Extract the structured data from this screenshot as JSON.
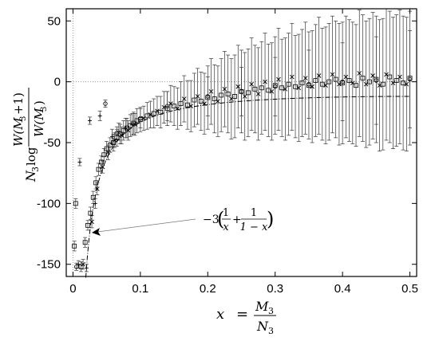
{
  "chart_data": {
    "type": "scatter",
    "xlim": [
      -0.01,
      0.51
    ],
    "ylim": [
      -160,
      60
    ],
    "xticks": [
      "0",
      "0.1",
      "0.2",
      "0.3",
      "0.4",
      "0.5"
    ],
    "yticks": [
      "50",
      "0",
      "-50",
      "-100",
      "-150"
    ],
    "xtick_values": [
      0,
      0.1,
      0.2,
      0.3,
      0.4,
      0.5
    ],
    "ytick_values": [
      50,
      0,
      -50,
      -100,
      -150
    ],
    "xlabel": {
      "var": "x",
      "eq": "=",
      "num": "M",
      "num_sub": "3",
      "den": "N",
      "den_sub": "3"
    },
    "ylabel": {
      "pre": "N",
      "pre_sub": "3",
      "log": "log",
      "num": "W(M",
      "num_sub": "3",
      "num_tail": "+1)",
      "den": "W(M",
      "den_sub": "3",
      "den_tail": ")"
    },
    "curve_label": {
      "prefix": "−3",
      "a_num": "1",
      "a_den": "x",
      "plus": "+",
      "b_num": "1",
      "b_den": "1 − x"
    },
    "curve_formula": "-3*(1/x + 1/(1-x))",
    "grid": false,
    "reference_lines": {
      "y": 0,
      "x": 0,
      "style": "dotted"
    },
    "series": [
      {
        "marker": "square",
        "points": [
          [
            0.002,
            -135
          ],
          [
            0.004,
            -100
          ],
          [
            0.012,
            -152
          ],
          [
            0.018,
            -132
          ],
          [
            0.022,
            -118
          ],
          [
            0.026,
            -108
          ],
          [
            0.03,
            -95
          ],
          [
            0.034,
            -83
          ],
          [
            0.038,
            -72
          ],
          [
            0.042,
            -66
          ],
          [
            0.046,
            -60
          ],
          [
            0.05,
            -55
          ],
          [
            0.055,
            -52
          ],
          [
            0.06,
            -50
          ],
          [
            0.065,
            -46
          ],
          [
            0.07,
            -43
          ],
          [
            0.075,
            -40
          ],
          [
            0.08,
            -38
          ],
          [
            0.085,
            -36
          ],
          [
            0.09,
            -34
          ],
          [
            0.095,
            -32
          ],
          [
            0.1,
            -31
          ],
          [
            0.11,
            -28
          ],
          [
            0.12,
            -26
          ],
          [
            0.13,
            -25
          ],
          [
            0.14,
            -22
          ],
          [
            0.15,
            -20
          ],
          [
            0.16,
            -18
          ],
          [
            0.17,
            -19
          ],
          [
            0.18,
            -15
          ],
          [
            0.19,
            -16
          ],
          [
            0.2,
            -13
          ],
          [
            0.21,
            -14
          ],
          [
            0.22,
            -11
          ],
          [
            0.23,
            -10
          ],
          [
            0.24,
            -12
          ],
          [
            0.25,
            -8
          ],
          [
            0.26,
            -9
          ],
          [
            0.27,
            -6
          ],
          [
            0.28,
            -5
          ],
          [
            0.29,
            -7
          ],
          [
            0.3,
            -3
          ],
          [
            0.31,
            -5
          ],
          [
            0.32,
            -2
          ],
          [
            0.33,
            -4
          ],
          [
            0.34,
            -1
          ],
          [
            0.35,
            -3
          ],
          [
            0.36,
            1
          ],
          [
            0.37,
            -2
          ],
          [
            0.38,
            0
          ],
          [
            0.39,
            2
          ],
          [
            0.4,
            -1
          ],
          [
            0.41,
            1
          ],
          [
            0.42,
            -3
          ],
          [
            0.43,
            3
          ],
          [
            0.44,
            0
          ],
          [
            0.45,
            2
          ],
          [
            0.46,
            -2
          ],
          [
            0.47,
            4
          ],
          [
            0.48,
            1
          ],
          [
            0.49,
            -1
          ],
          [
            0.5,
            3
          ]
        ],
        "errors": [
          4,
          4,
          4,
          4,
          4,
          5,
          5,
          5,
          5,
          5,
          5,
          6,
          6,
          7,
          7,
          8,
          8,
          8,
          9,
          9,
          10,
          10,
          11,
          12,
          13,
          14,
          16,
          18,
          20,
          22,
          24,
          26,
          28,
          30,
          32,
          34,
          34,
          36,
          36,
          38,
          38,
          40,
          40,
          42,
          42,
          44,
          44,
          46,
          46,
          48,
          48,
          50,
          50,
          50,
          52,
          52,
          52,
          54,
          54,
          54,
          55,
          55
        ]
      },
      {
        "marker": "cross",
        "points": [
          [
            0.015,
            -150
          ],
          [
            0.028,
            -115
          ],
          [
            0.036,
            -88
          ],
          [
            0.044,
            -70
          ],
          [
            0.052,
            -58
          ],
          [
            0.062,
            -48
          ],
          [
            0.072,
            -44
          ],
          [
            0.082,
            -40
          ],
          [
            0.092,
            -35
          ],
          [
            0.105,
            -30
          ],
          [
            0.115,
            -27
          ],
          [
            0.125,
            -24
          ],
          [
            0.135,
            -21
          ],
          [
            0.145,
            -18
          ],
          [
            0.155,
            -22
          ],
          [
            0.165,
            -14
          ],
          [
            0.175,
            -20
          ],
          [
            0.185,
            -12
          ],
          [
            0.195,
            -18
          ],
          [
            0.205,
            -8
          ],
          [
            0.215,
            -16
          ],
          [
            0.225,
            -6
          ],
          [
            0.235,
            -14
          ],
          [
            0.245,
            -4
          ],
          [
            0.255,
            -12
          ],
          [
            0.265,
            -2
          ],
          [
            0.275,
            -10
          ],
          [
            0.285,
            0
          ],
          [
            0.295,
            -8
          ],
          [
            0.305,
            2
          ],
          [
            0.315,
            -6
          ],
          [
            0.325,
            4
          ],
          [
            0.335,
            -5
          ],
          [
            0.345,
            3
          ],
          [
            0.355,
            -4
          ],
          [
            0.365,
            5
          ],
          [
            0.375,
            -3
          ],
          [
            0.385,
            6
          ],
          [
            0.395,
            -2
          ],
          [
            0.405,
            4
          ],
          [
            0.415,
            -1
          ],
          [
            0.425,
            7
          ],
          [
            0.435,
            -2
          ],
          [
            0.445,
            5
          ],
          [
            0.455,
            -3
          ],
          [
            0.465,
            6
          ],
          [
            0.475,
            -1
          ],
          [
            0.485,
            4
          ],
          [
            0.495,
            -2
          ]
        ],
        "errors": [
          4,
          5,
          5,
          5,
          6,
          6,
          7,
          8,
          9,
          10,
          11,
          12,
          13,
          15,
          17,
          19,
          21,
          23,
          25,
          27,
          29,
          31,
          33,
          34,
          36,
          38,
          38,
          40,
          40,
          42,
          42,
          44,
          44,
          46,
          46,
          48,
          48,
          48,
          50,
          50,
          50,
          52,
          52,
          52,
          54,
          54,
          54,
          55,
          55
        ]
      },
      {
        "marker": "circle",
        "points": [
          [
            0.005,
            -152
          ],
          [
            0.048,
            -18
          ],
          [
            0.065,
            -42
          ],
          [
            0.1,
            -30
          ],
          [
            0.14,
            -20
          ],
          [
            0.2,
            -12
          ],
          [
            0.25,
            -8
          ],
          [
            0.3,
            -4
          ],
          [
            0.35,
            -2
          ],
          [
            0.4,
            0
          ],
          [
            0.45,
            1
          ],
          [
            0.5,
            2
          ]
        ],
        "errors": [
          3,
          3,
          5,
          8,
          12,
          16,
          20,
          24,
          28,
          32,
          36,
          40
        ]
      },
      {
        "marker": "plus",
        "points": [
          [
            0.008,
            -150
          ],
          [
            0.01,
            -66
          ],
          [
            0.02,
            -153
          ],
          [
            0.025,
            -32
          ],
          [
            0.033,
            -100
          ],
          [
            0.04,
            -28
          ],
          [
            0.058,
            -45
          ],
          [
            0.068,
            -41
          ],
          [
            0.078,
            -38
          ],
          [
            0.088,
            -35
          ]
        ],
        "errors": [
          3,
          3,
          3,
          3,
          4,
          4,
          6,
          7,
          8,
          9
        ]
      }
    ]
  }
}
